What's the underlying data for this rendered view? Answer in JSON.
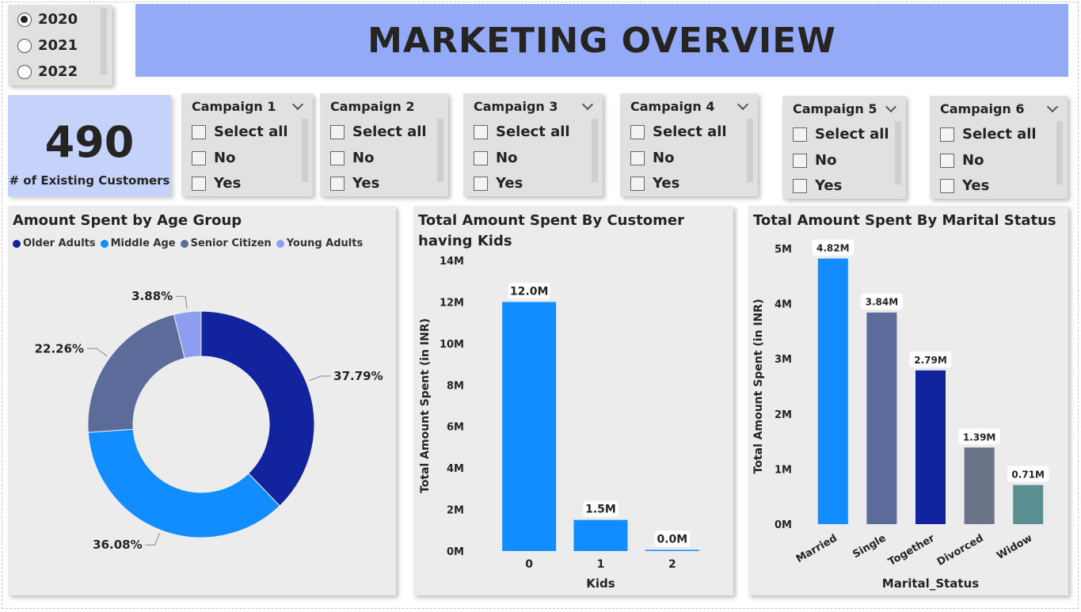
{
  "header": {
    "title": "MARKETING OVERVIEW"
  },
  "year_slicer": {
    "options": [
      "2020",
      "2021",
      "2022"
    ],
    "selected": "2020"
  },
  "kpi": {
    "value": "490",
    "label": "# of Existing Customers"
  },
  "campaigns": [
    {
      "title": "Campaign 1",
      "options": [
        "Select all",
        "No",
        "Yes"
      ]
    },
    {
      "title": "Campaign 2",
      "options": [
        "Select all",
        "No",
        "Yes"
      ]
    },
    {
      "title": "Campaign 3",
      "options": [
        "Select all",
        "No",
        "Yes"
      ]
    },
    {
      "title": "Campaign 4",
      "options": [
        "Select all",
        "No",
        "Yes"
      ]
    },
    {
      "title": "Campaign 5",
      "options": [
        "Select all",
        "No",
        "Yes"
      ]
    },
    {
      "title": "Campaign 6",
      "options": [
        "Select all",
        "No",
        "Yes"
      ]
    }
  ],
  "chart_data": [
    {
      "type": "pie",
      "title": "Amount Spent by Age Group",
      "categories": [
        "Older Adults",
        "Middle Age",
        "Senior Citizen",
        "Young Adults"
      ],
      "values": [
        37.79,
        36.08,
        22.26,
        3.88
      ],
      "labels": [
        "37.79%",
        "36.08%",
        "22.26%",
        "3.88%"
      ],
      "colors": [
        "#12239e",
        "#118dff",
        "#5b6b9a",
        "#8d9ef0"
      ],
      "legend_position": "top-left"
    },
    {
      "type": "bar",
      "title": "Total Amount Spent By Customer having Kids",
      "categories": [
        "0",
        "1",
        "2"
      ],
      "values": [
        12.0,
        1.5,
        0.0
      ],
      "labels": [
        "12.0M",
        "1.5M",
        "0.0M"
      ],
      "unit": "M",
      "xlabel": "Kids",
      "ylabel": "Total Amount Spent (in INR)",
      "ylim": [
        0,
        14
      ],
      "yticks": [
        "0M",
        "2M",
        "4M",
        "6M",
        "8M",
        "10M",
        "12M",
        "14M"
      ],
      "colors": [
        "#118dff",
        "#118dff",
        "#118dff"
      ]
    },
    {
      "type": "bar",
      "title": "Total Amount Spent By Marital Status",
      "categories": [
        "Married",
        "Single",
        "Together",
        "Divorced",
        "Widow"
      ],
      "values": [
        4.82,
        3.84,
        2.79,
        1.39,
        0.71
      ],
      "labels": [
        "4.82M",
        "3.84M",
        "2.79M",
        "1.39M",
        "0.71M"
      ],
      "unit": "M",
      "xlabel": "Marital_Status",
      "ylabel": "Total Amount Spent (in INR)",
      "ylim": [
        0,
        5
      ],
      "yticks": [
        "0M",
        "1M",
        "2M",
        "3M",
        "4M",
        "5M"
      ],
      "colors": [
        "#118dff",
        "#5b6b9a",
        "#12239e",
        "#6b7388",
        "#5a8f92"
      ]
    }
  ]
}
